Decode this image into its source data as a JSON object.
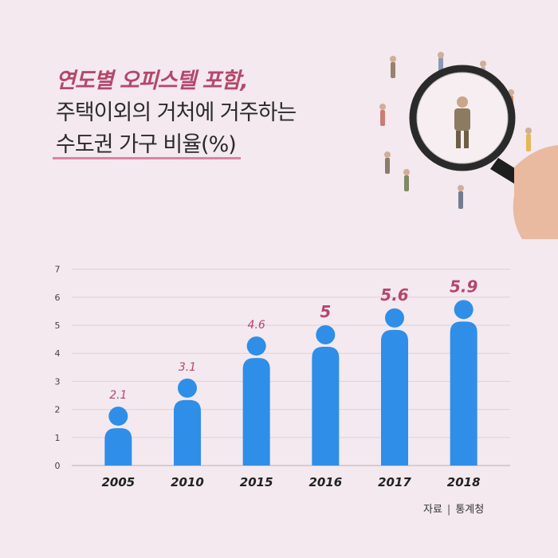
{
  "header": {
    "title_line1": "연도별 오피스텔 포함,",
    "title_line2": "주택이외의 거처에 거주하는",
    "title_line3": "수도권 가구 비율(%)"
  },
  "source": {
    "label": "자료",
    "separator": "|",
    "value": "통계청"
  },
  "colors": {
    "bar": "#2f8ee8",
    "accent": "#b5476b",
    "background": "#f3e9ee"
  },
  "chart_data": {
    "type": "bar",
    "categories": [
      "2005",
      "2010",
      "2015",
      "2016",
      "2017",
      "2018"
    ],
    "values": [
      2.1,
      3.1,
      4.6,
      5,
      5.6,
      5.9
    ],
    "value_labels": [
      "2.1",
      "3.1",
      "4.6",
      "5",
      "5.6",
      "5.9"
    ],
    "ylim": [
      0,
      7
    ],
    "yticks": [
      "0",
      "1",
      "2",
      "3",
      "4",
      "5",
      "6",
      "7"
    ],
    "grid": true,
    "bar_style": "person-icon"
  }
}
